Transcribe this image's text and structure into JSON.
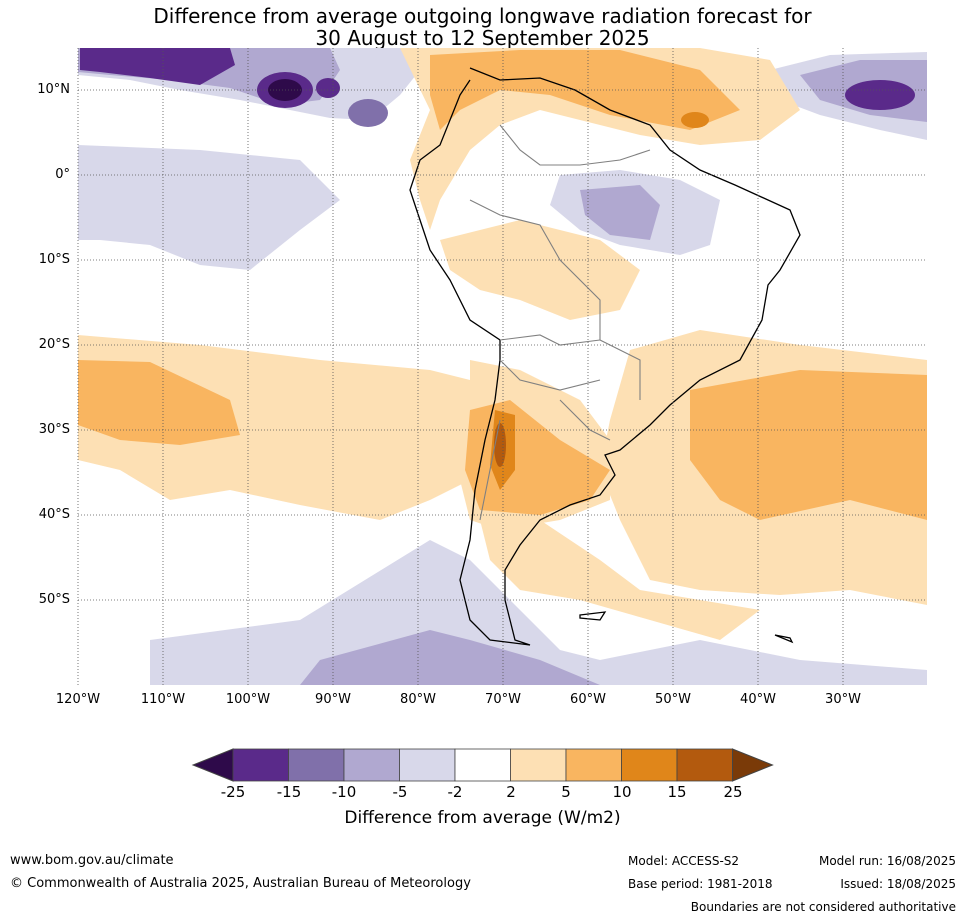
{
  "title": {
    "line1": "Difference from average outgoing longwave radiation forecast for",
    "line2": "30 August to 12 September 2025"
  },
  "map": {
    "lon_labels": [
      "120°W",
      "110°W",
      "100°W",
      "90°W",
      "80°W",
      "70°W",
      "60°W",
      "50°W",
      "40°W",
      "30°W"
    ],
    "lat_labels": [
      "10°N",
      "0°",
      "10°S",
      "20°S",
      "30°S",
      "40°S",
      "50°S"
    ],
    "lon_range": [
      -120,
      -20
    ],
    "lat_range": [
      -60,
      15
    ],
    "gridlines": true
  },
  "colorbar": {
    "ticks": [
      "-25",
      "-15",
      "-10",
      "-5",
      "-2",
      "2",
      "5",
      "10",
      "15",
      "25"
    ],
    "colors": [
      "#2e0a4a",
      "#5a2a8a",
      "#8070aa",
      "#b0a8d0",
      "#d8d8ea",
      "#ffffff",
      "#fde0b4",
      "#f9b560",
      "#e0861a",
      "#b35a0e",
      "#7a3a08"
    ],
    "label": "Difference from average (W/m2)"
  },
  "footer": {
    "website": "www.bom.gov.au/climate",
    "copyright": "© Commonwealth of Australia 2025, Australian Bureau of Meteorology",
    "model": "Model: ACCESS-S2",
    "base_period": "Base period: 1981-2018",
    "model_run": "Model run: 16/08/2025",
    "issued": "Issued: 18/08/2025",
    "boundaries": "Boundaries are not considered authoritative"
  }
}
